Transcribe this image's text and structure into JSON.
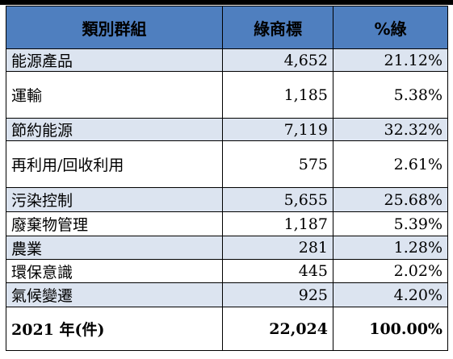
{
  "table": {
    "headers": [
      "類別群組",
      "綠商標",
      "%綠"
    ],
    "rows": [
      {
        "category": "能源產品",
        "count": "4,652",
        "percent": "21.12%"
      },
      {
        "category": "運輸",
        "count": "1,185",
        "percent": "5.38%"
      },
      {
        "category": "節約能源",
        "count": "7,119",
        "percent": "32.32%"
      },
      {
        "category": "再利用/回收利用",
        "count": "575",
        "percent": "2.61%"
      },
      {
        "category": "污染控制",
        "count": "5,655",
        "percent": "25.68%"
      },
      {
        "category": "廢棄物管理",
        "count": "1,187",
        "percent": "5.39%"
      },
      {
        "category": "農業",
        "count": "281",
        "percent": "1.28%"
      },
      {
        "category": "環保意識",
        "count": "445",
        "percent": "2.02%"
      },
      {
        "category": "氣候變遷",
        "count": "925",
        "percent": "4.20%"
      }
    ],
    "total": {
      "label": "2021 年(件)",
      "count": "22,024",
      "percent": "100.00%"
    }
  },
  "colors": {
    "header_bg": "#4f7fbf",
    "shaded_row_bg": "#dce4f0",
    "border": "#000000"
  }
}
